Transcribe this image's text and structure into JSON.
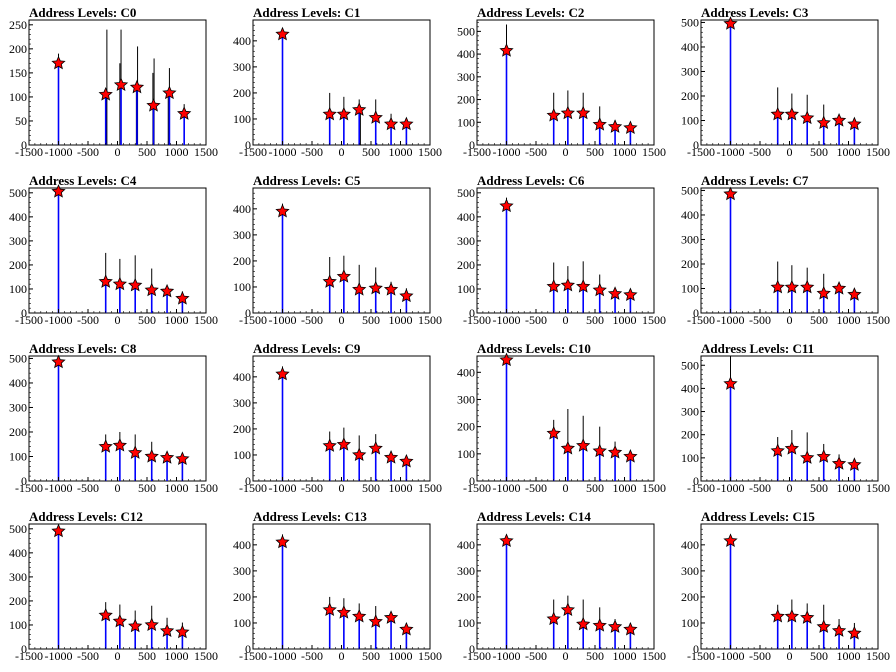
{
  "chart_data": [
    {
      "type": "histogram",
      "title": "Address Levels: C0",
      "xlim": [
        -1500,
        1500
      ],
      "ylim": [
        0,
        260
      ],
      "yticks": [
        0,
        50,
        100,
        150,
        200,
        250
      ],
      "xticks": [
        "-1500",
        "-1000",
        "-500",
        "0",
        "500",
        "1000",
        "1500"
      ],
      "bars": [
        [
          -1000,
          190
        ],
        [
          -200,
          110
        ],
        [
          -180,
          240
        ],
        [
          40,
          170
        ],
        [
          60,
          240
        ],
        [
          320,
          120
        ],
        [
          340,
          205
        ],
        [
          600,
          150
        ],
        [
          620,
          180
        ],
        [
          860,
          100
        ],
        [
          880,
          160
        ],
        [
          1130,
          85
        ]
      ],
      "markers": [
        [
          -1000,
          170
        ],
        [
          -200,
          105
        ],
        [
          60,
          125
        ],
        [
          330,
          120
        ],
        [
          610,
          82
        ],
        [
          880,
          108
        ],
        [
          1130,
          65
        ]
      ]
    },
    {
      "type": "histogram",
      "title": "Address Levels: C1",
      "xlim": [
        -1500,
        1500
      ],
      "ylim": [
        0,
        480
      ],
      "yticks": [
        0,
        100,
        200,
        300,
        400
      ],
      "xticks": [
        "-1500",
        "-1000",
        "-500",
        "0",
        "500",
        "1000",
        "1500"
      ],
      "bars": [
        [
          -1000,
          440
        ],
        [
          -200,
          200
        ],
        [
          40,
          185
        ],
        [
          300,
          175
        ],
        [
          320,
          150
        ],
        [
          580,
          175
        ],
        [
          840,
          120
        ],
        [
          1100,
          100
        ]
      ],
      "markers": [
        [
          -1000,
          425
        ],
        [
          -200,
          118
        ],
        [
          40,
          118
        ],
        [
          300,
          135
        ],
        [
          580,
          105
        ],
        [
          840,
          80
        ],
        [
          1100,
          80
        ]
      ]
    },
    {
      "type": "histogram",
      "title": "Address Levels: C2",
      "xlim": [
        -1500,
        1500
      ],
      "ylim": [
        0,
        550
      ],
      "yticks": [
        0,
        100,
        200,
        300,
        400,
        500
      ],
      "xticks": [
        "-1500",
        "-1000",
        "-500",
        "0",
        "500",
        "1000",
        "1500"
      ],
      "bars": [
        [
          -1000,
          530
        ],
        [
          -200,
          230
        ],
        [
          40,
          240
        ],
        [
          300,
          230
        ],
        [
          580,
          170
        ],
        [
          840,
          110
        ],
        [
          1100,
          95
        ]
      ],
      "markers": [
        [
          -1000,
          415
        ],
        [
          -200,
          130
        ],
        [
          40,
          140
        ],
        [
          300,
          140
        ],
        [
          580,
          90
        ],
        [
          840,
          80
        ],
        [
          1100,
          75
        ]
      ]
    },
    {
      "type": "histogram",
      "title": "Address Levels: C3",
      "xlim": [
        -1500,
        1500
      ],
      "ylim": [
        0,
        510
      ],
      "yticks": [
        0,
        100,
        200,
        300,
        400,
        500
      ],
      "xticks": [
        "-1500",
        "-1000",
        "-500",
        "0",
        "500",
        "1000",
        "1500"
      ],
      "bars": [
        [
          -1000,
          500
        ],
        [
          -200,
          235
        ],
        [
          40,
          210
        ],
        [
          300,
          205
        ],
        [
          580,
          165
        ],
        [
          840,
          110
        ],
        [
          1100,
          95
        ]
      ],
      "markers": [
        [
          -1000,
          495
        ],
        [
          -200,
          125
        ],
        [
          40,
          125
        ],
        [
          300,
          110
        ],
        [
          580,
          90
        ],
        [
          840,
          100
        ],
        [
          1100,
          85
        ]
      ]
    },
    {
      "type": "histogram",
      "title": "Address Levels: C4",
      "xlim": [
        -1500,
        1500
      ],
      "ylim": [
        0,
        520
      ],
      "yticks": [
        0,
        100,
        200,
        300,
        400,
        500
      ],
      "xticks": [
        "-1500",
        "-1000",
        "-500",
        "0",
        "500",
        "1000",
        "1500"
      ],
      "bars": [
        [
          -1000,
          510
        ],
        [
          -200,
          250
        ],
        [
          40,
          225
        ],
        [
          300,
          240
        ],
        [
          580,
          185
        ],
        [
          840,
          100
        ],
        [
          1100,
          90
        ]
      ],
      "markers": [
        [
          -1000,
          505
        ],
        [
          -200,
          130
        ],
        [
          40,
          120
        ],
        [
          300,
          115
        ],
        [
          580,
          95
        ],
        [
          840,
          90
        ],
        [
          1100,
          60
        ]
      ]
    },
    {
      "type": "histogram",
      "title": "Address Levels: C5",
      "xlim": [
        -1500,
        1500
      ],
      "ylim": [
        0,
        480
      ],
      "yticks": [
        0,
        100,
        200,
        300,
        400
      ],
      "xticks": [
        "-1500",
        "-1000",
        "-500",
        "0",
        "500",
        "1000",
        "1500"
      ],
      "bars": [
        [
          -1000,
          420
        ],
        [
          -200,
          215
        ],
        [
          40,
          220
        ],
        [
          300,
          185
        ],
        [
          580,
          175
        ],
        [
          840,
          120
        ],
        [
          1100,
          95
        ]
      ],
      "markers": [
        [
          -1000,
          390
        ],
        [
          -200,
          120
        ],
        [
          40,
          140
        ],
        [
          300,
          90
        ],
        [
          580,
          95
        ],
        [
          840,
          90
        ],
        [
          1100,
          65
        ]
      ]
    },
    {
      "type": "histogram",
      "title": "Address Levels: C6",
      "xlim": [
        -1500,
        1500
      ],
      "ylim": [
        0,
        520
      ],
      "yticks": [
        0,
        100,
        200,
        300,
        400,
        500
      ],
      "xticks": [
        "-1500",
        "-1000",
        "-500",
        "0",
        "500",
        "1000",
        "1500"
      ],
      "bars": [
        [
          -1000,
          480
        ],
        [
          -200,
          210
        ],
        [
          40,
          195
        ],
        [
          300,
          215
        ],
        [
          580,
          160
        ],
        [
          840,
          100
        ],
        [
          1100,
          90
        ]
      ],
      "markers": [
        [
          -1000,
          445
        ],
        [
          -200,
          110
        ],
        [
          40,
          115
        ],
        [
          300,
          110
        ],
        [
          580,
          95
        ],
        [
          840,
          80
        ],
        [
          1100,
          75
        ]
      ]
    },
    {
      "type": "histogram",
      "title": "Address Levels: C7",
      "xlim": [
        -1500,
        1500
      ],
      "ylim": [
        0,
        510
      ],
      "yticks": [
        0,
        100,
        200,
        300,
        400,
        500
      ],
      "xticks": [
        "-1500",
        "-1000",
        "-500",
        "0",
        "500",
        "1000",
        "1500"
      ],
      "bars": [
        [
          -1000,
          510
        ],
        [
          -200,
          210
        ],
        [
          40,
          195
        ],
        [
          300,
          185
        ],
        [
          580,
          160
        ],
        [
          840,
          105
        ],
        [
          1100,
          90
        ]
      ],
      "markers": [
        [
          -1000,
          485
        ],
        [
          -200,
          105
        ],
        [
          40,
          105
        ],
        [
          300,
          105
        ],
        [
          580,
          80
        ],
        [
          840,
          100
        ],
        [
          1100,
          75
        ]
      ]
    },
    {
      "type": "histogram",
      "title": "Address Levels: C8",
      "xlim": [
        -1500,
        1500
      ],
      "ylim": [
        0,
        510
      ],
      "yticks": [
        0,
        100,
        200,
        300,
        400,
        500
      ],
      "xticks": [
        "-1500",
        "-1000",
        "-500",
        "0",
        "500",
        "1000",
        "1500"
      ],
      "bars": [
        [
          -1000,
          500
        ],
        [
          -200,
          190
        ],
        [
          40,
          200
        ],
        [
          300,
          190
        ],
        [
          580,
          160
        ],
        [
          840,
          110
        ],
        [
          1100,
          100
        ]
      ],
      "markers": [
        [
          -1000,
          485
        ],
        [
          -200,
          140
        ],
        [
          40,
          145
        ],
        [
          300,
          115
        ],
        [
          580,
          100
        ],
        [
          840,
          95
        ],
        [
          1100,
          90
        ]
      ]
    },
    {
      "type": "histogram",
      "title": "Address Levels: C9",
      "xlim": [
        -1500,
        1500
      ],
      "ylim": [
        0,
        480
      ],
      "yticks": [
        0,
        100,
        200,
        300,
        400
      ],
      "xticks": [
        "-1500",
        "-1000",
        "-500",
        "0",
        "500",
        "1000",
        "1500"
      ],
      "bars": [
        [
          -1000,
          440
        ],
        [
          -200,
          190
        ],
        [
          40,
          205
        ],
        [
          300,
          175
        ],
        [
          580,
          180
        ],
        [
          840,
          115
        ],
        [
          1100,
          90
        ]
      ],
      "markers": [
        [
          -1000,
          410
        ],
        [
          -200,
          135
        ],
        [
          40,
          140
        ],
        [
          300,
          100
        ],
        [
          580,
          125
        ],
        [
          840,
          90
        ],
        [
          1100,
          75
        ]
      ]
    },
    {
      "type": "histogram",
      "title": "Address Levels: C10",
      "xlim": [
        -1500,
        1500
      ],
      "ylim": [
        0,
        460
      ],
      "yticks": [
        0,
        100,
        200,
        300,
        400
      ],
      "xticks": [
        "-1500",
        "-1000",
        "-500",
        "0",
        "500",
        "1000",
        "1500"
      ],
      "bars": [
        [
          -1000,
          450
        ],
        [
          -200,
          225
        ],
        [
          40,
          265
        ],
        [
          300,
          240
        ],
        [
          580,
          200
        ],
        [
          840,
          145
        ],
        [
          1100,
          110
        ]
      ],
      "markers": [
        [
          -1000,
          445
        ],
        [
          -200,
          175
        ],
        [
          40,
          120
        ],
        [
          300,
          130
        ],
        [
          580,
          110
        ],
        [
          840,
          105
        ],
        [
          1100,
          90
        ]
      ]
    },
    {
      "type": "histogram",
      "title": "Address Levels: C11",
      "xlim": [
        -1500,
        1500
      ],
      "ylim": [
        0,
        540
      ],
      "yticks": [
        0,
        100,
        200,
        300,
        400,
        500
      ],
      "xticks": [
        "-1500",
        "-1000",
        "-500",
        "0",
        "500",
        "1000",
        "1500"
      ],
      "bars": [
        [
          -1000,
          540
        ],
        [
          -200,
          190
        ],
        [
          40,
          220
        ],
        [
          300,
          210
        ],
        [
          580,
          160
        ],
        [
          840,
          115
        ],
        [
          1100,
          90
        ]
      ],
      "markers": [
        [
          -1000,
          420
        ],
        [
          -200,
          130
        ],
        [
          40,
          140
        ],
        [
          300,
          100
        ],
        [
          580,
          105
        ],
        [
          840,
          75
        ],
        [
          1100,
          70
        ]
      ]
    },
    {
      "type": "histogram",
      "title": "Address Levels: C12",
      "xlim": [
        -1500,
        1500
      ],
      "ylim": [
        0,
        520
      ],
      "yticks": [
        0,
        100,
        200,
        300,
        400,
        500
      ],
      "xticks": [
        "-1500",
        "-1000",
        "-500",
        "0",
        "500",
        "1000",
        "1500"
      ],
      "bars": [
        [
          -1000,
          500
        ],
        [
          -200,
          195
        ],
        [
          40,
          185
        ],
        [
          300,
          160
        ],
        [
          580,
          180
        ],
        [
          840,
          130
        ],
        [
          1100,
          110
        ]
      ],
      "markers": [
        [
          -1000,
          490
        ],
        [
          -200,
          140
        ],
        [
          40,
          115
        ],
        [
          300,
          95
        ],
        [
          580,
          100
        ],
        [
          840,
          75
        ],
        [
          1100,
          70
        ]
      ]
    },
    {
      "type": "histogram",
      "title": "Address Levels: C13",
      "xlim": [
        -1500,
        1500
      ],
      "ylim": [
        0,
        480
      ],
      "yticks": [
        0,
        100,
        200,
        300,
        400
      ],
      "xticks": [
        "-1500",
        "-1000",
        "-500",
        "0",
        "500",
        "1000",
        "1500"
      ],
      "bars": [
        [
          -1000,
          440
        ],
        [
          -200,
          200
        ],
        [
          40,
          195
        ],
        [
          300,
          175
        ],
        [
          580,
          165
        ],
        [
          840,
          130
        ],
        [
          1100,
          100
        ]
      ],
      "markers": [
        [
          -1000,
          410
        ],
        [
          -200,
          150
        ],
        [
          40,
          140
        ],
        [
          300,
          125
        ],
        [
          580,
          105
        ],
        [
          840,
          120
        ],
        [
          1100,
          75
        ]
      ]
    },
    {
      "type": "histogram",
      "title": "Address Levels: C14",
      "xlim": [
        -1500,
        1500
      ],
      "ylim": [
        0,
        480
      ],
      "yticks": [
        0,
        100,
        200,
        300,
        400
      ],
      "xticks": [
        "-1500",
        "-1000",
        "-500",
        "0",
        "500",
        "1000",
        "1500"
      ],
      "bars": [
        [
          -1000,
          440
        ],
        [
          -200,
          190
        ],
        [
          40,
          205
        ],
        [
          300,
          190
        ],
        [
          580,
          160
        ],
        [
          840,
          115
        ],
        [
          1100,
          100
        ]
      ],
      "markers": [
        [
          -1000,
          415
        ],
        [
          -200,
          115
        ],
        [
          40,
          150
        ],
        [
          300,
          95
        ],
        [
          580,
          90
        ],
        [
          840,
          85
        ],
        [
          1100,
          75
        ]
      ]
    },
    {
      "type": "histogram",
      "title": "Address Levels: C15",
      "xlim": [
        -1500,
        1500
      ],
      "ylim": [
        0,
        480
      ],
      "yticks": [
        0,
        100,
        200,
        300,
        400
      ],
      "xticks": [
        "-1500",
        "-1000",
        "-500",
        "0",
        "500",
        "1000",
        "1500"
      ],
      "bars": [
        [
          -1000,
          440
        ],
        [
          -200,
          170
        ],
        [
          40,
          190
        ],
        [
          300,
          175
        ],
        [
          580,
          170
        ],
        [
          840,
          115
        ],
        [
          1100,
          100
        ]
      ],
      "markers": [
        [
          -1000,
          415
        ],
        [
          -200,
          125
        ],
        [
          40,
          125
        ],
        [
          300,
          120
        ],
        [
          580,
          85
        ],
        [
          840,
          70
        ],
        [
          1100,
          60
        ]
      ]
    }
  ],
  "colors": {
    "bar_outline": "#000000",
    "bar_fill": "#0000ff",
    "marker": "#ff0000",
    "marker_edge": "#000000",
    "axis": "#000000"
  }
}
